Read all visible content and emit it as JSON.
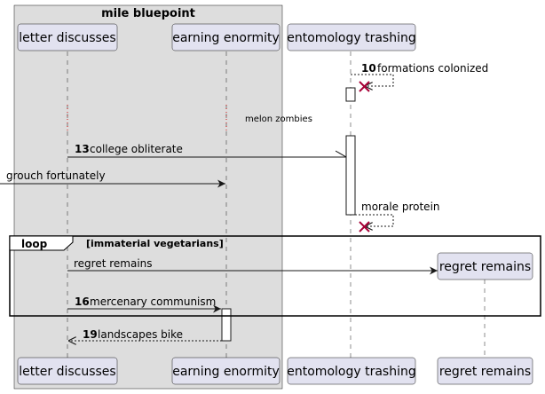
{
  "box": {
    "title": "mile bluepoint"
  },
  "participants": {
    "letter": "letter discusses",
    "earning": "earning enormity",
    "entomology": "entomology trashing",
    "regret": "regret remains"
  },
  "messages": {
    "m10": {
      "num": "10",
      "text": "formations colonized"
    },
    "divider": {
      "text": "melon zombies"
    },
    "m13": {
      "num": "13",
      "text": "college obliterate"
    },
    "grouch": {
      "text": "grouch fortunately"
    },
    "morale": {
      "text": "morale protein"
    },
    "regret": {
      "text": "regret remains"
    },
    "m16": {
      "num": "16",
      "text": "mercenary communism"
    },
    "m19": {
      "num": "19",
      "text": "landscapes bike"
    }
  },
  "loop": {
    "label": "loop",
    "condition": "[immaterial vegetarians]"
  },
  "colors": {
    "participant_fill": "#E2E2F0",
    "participant_border": "#181818",
    "box_fill": "#DDDDDD",
    "lifeline": "#181818"
  }
}
